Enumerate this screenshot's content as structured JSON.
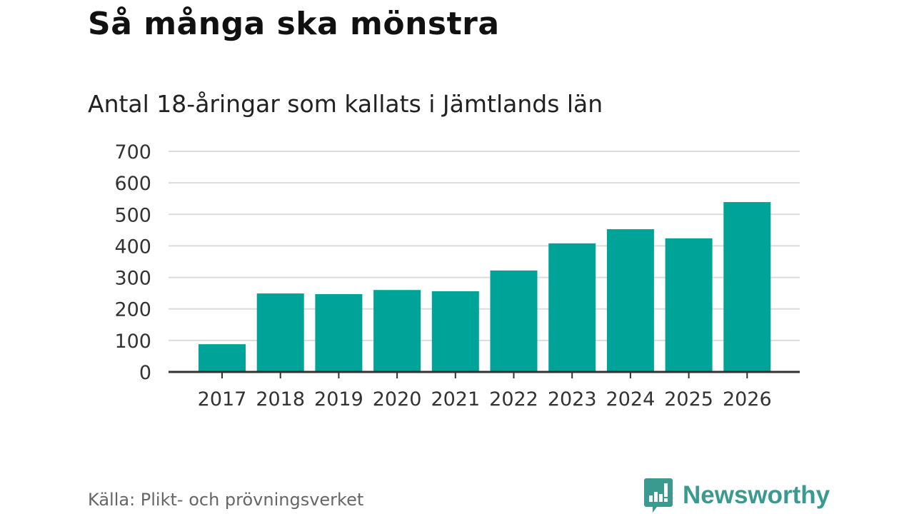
{
  "chart_data": {
    "type": "bar",
    "title": "Så många ska mönstra",
    "subtitle": "Antal 18-åringar som kallats i Jämtlands län",
    "categories": [
      "2017",
      "2018",
      "2019",
      "2020",
      "2021",
      "2022",
      "2023",
      "2024",
      "2025",
      "2026"
    ],
    "values": [
      88,
      249,
      247,
      260,
      256,
      322,
      408,
      453,
      424,
      539
    ],
    "ylim": [
      0,
      700
    ],
    "yticks": [
      0,
      100,
      200,
      300,
      400,
      500,
      600,
      700
    ],
    "xlabel": "",
    "ylabel": "",
    "grid": true,
    "bar_color": "#00a398"
  },
  "footer": {
    "source": "Källa: Plikt- och prövningsverket",
    "brand": "Newsworthy",
    "brand_color": "#3a9a8f"
  }
}
